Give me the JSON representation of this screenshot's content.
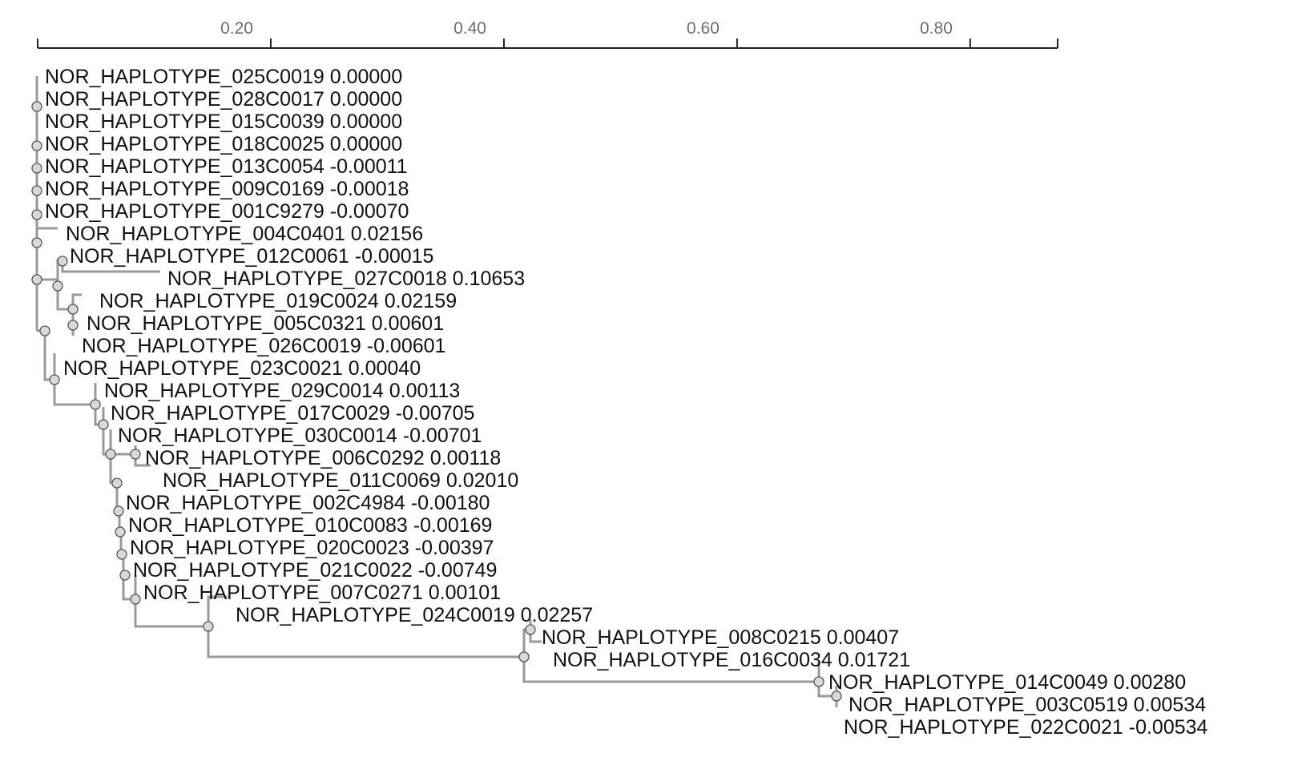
{
  "axis": {
    "min": 0,
    "max": 0.875,
    "ticks": [
      {
        "value": 0.2,
        "label": "0.20"
      },
      {
        "value": 0.4,
        "label": "0.40"
      },
      {
        "value": 0.6,
        "label": "0.60"
      },
      {
        "value": 0.8,
        "label": "0.80"
      }
    ]
  },
  "leaves": [
    {
      "name": "NOR_HAPLOTYPE_025C0019",
      "value": "0.00000"
    },
    {
      "name": "NOR_HAPLOTYPE_028C0017",
      "value": "0.00000"
    },
    {
      "name": "NOR_HAPLOTYPE_015C0039",
      "value": "0.00000"
    },
    {
      "name": "NOR_HAPLOTYPE_018C0025",
      "value": "0.00000"
    },
    {
      "name": "NOR_HAPLOTYPE_013C0054",
      "value": "-0.00011"
    },
    {
      "name": "NOR_HAPLOTYPE_009C0169",
      "value": "-0.00018"
    },
    {
      "name": "NOR_HAPLOTYPE_001C9279",
      "value": "-0.00070"
    },
    {
      "name": "NOR_HAPLOTYPE_004C0401",
      "value": "0.02156"
    },
    {
      "name": "NOR_HAPLOTYPE_012C0061",
      "value": "-0.00015"
    },
    {
      "name": "NOR_HAPLOTYPE_027C0018",
      "value": "0.10653"
    },
    {
      "name": "NOR_HAPLOTYPE_019C0024",
      "value": "0.02159"
    },
    {
      "name": "NOR_HAPLOTYPE_005C0321",
      "value": "0.00601"
    },
    {
      "name": "NOR_HAPLOTYPE_026C0019",
      "value": "-0.00601"
    },
    {
      "name": "NOR_HAPLOTYPE_023C0021",
      "value": "0.00040"
    },
    {
      "name": "NOR_HAPLOTYPE_029C0014",
      "value": "0.00113"
    },
    {
      "name": "NOR_HAPLOTYPE_017C0029",
      "value": "-0.00705"
    },
    {
      "name": "NOR_HAPLOTYPE_030C0014",
      "value": "-0.00701"
    },
    {
      "name": "NOR_HAPLOTYPE_006C0292",
      "value": "0.00118"
    },
    {
      "name": "NOR_HAPLOTYPE_011C0069",
      "value": "0.02010"
    },
    {
      "name": "NOR_HAPLOTYPE_002C4984",
      "value": "-0.00180"
    },
    {
      "name": "NOR_HAPLOTYPE_010C0083",
      "value": "-0.00169"
    },
    {
      "name": "NOR_HAPLOTYPE_020C0023",
      "value": "-0.00397"
    },
    {
      "name": "NOR_HAPLOTYPE_021C0022",
      "value": "-0.00749"
    },
    {
      "name": "NOR_HAPLOTYPE_007C0271",
      "value": "0.00101"
    },
    {
      "name": "NOR_HAPLOTYPE_024C0019",
      "value": "0.02257"
    },
    {
      "name": "NOR_HAPLOTYPE_008C0215",
      "value": "0.00407"
    },
    {
      "name": "NOR_HAPLOTYPE_016C0034",
      "value": "0.01721"
    },
    {
      "name": "NOR_HAPLOTYPE_014C0049",
      "value": "0.00280"
    },
    {
      "name": "NOR_HAPLOTYPE_003C0519",
      "value": "0.00534"
    },
    {
      "name": "NOR_HAPLOTYPE_022C0021",
      "value": "-0.00534"
    }
  ],
  "colors": {
    "branch": "#9a9a9a",
    "node_fill": "#d9d9d9",
    "node_stroke": "#555555",
    "axis": "#222222",
    "axis_label": "#6e6e6e",
    "text": "#111111"
  }
}
